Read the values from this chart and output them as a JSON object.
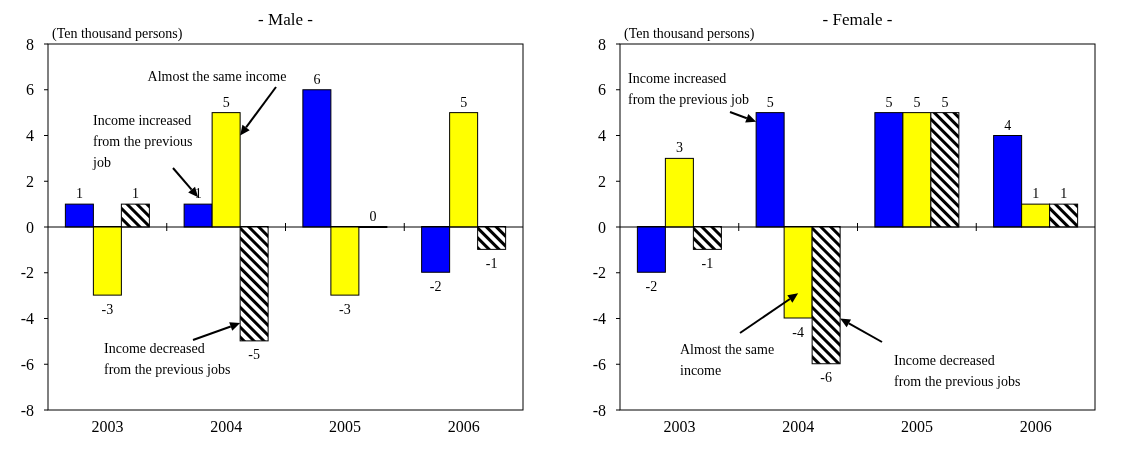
{
  "chart_data": [
    {
      "type": "bar",
      "title": "- Male -",
      "ylabel": "(Ten thousand persons)",
      "categories": [
        "2003",
        "2004",
        "2005",
        "2006"
      ],
      "series": [
        {
          "color": "#0000ff",
          "values": [
            1,
            1,
            6,
            -2
          ]
        },
        {
          "color": "#ffff00",
          "values": [
            -3,
            5,
            -3,
            5
          ]
        },
        {
          "color": "#000000",
          "values": [
            1,
            -5,
            0,
            -1
          ]
        }
      ],
      "ylim": [
        -8,
        8
      ],
      "yticks": [
        -8,
        -6,
        -4,
        -2,
        0,
        2,
        4,
        6,
        8
      ],
      "data_labels": true,
      "annotations": [
        "Almost the same income",
        "Income increased\nfrom the previous\njob",
        "Income decreased\nfrom the previous jobs"
      ]
    },
    {
      "type": "bar",
      "title": "- Female -",
      "ylabel": "(Ten thousand persons)",
      "categories": [
        "2003",
        "2004",
        "2005",
        "2006"
      ],
      "series": [
        {
          "color": "#0000ff",
          "values": [
            -2,
            5,
            5,
            4
          ]
        },
        {
          "color": "#ffff00",
          "values": [
            3,
            -4,
            5,
            1
          ]
        },
        {
          "color": "#000000",
          "values": [
            -1,
            -6,
            5,
            1
          ]
        }
      ],
      "ylim": [
        -8,
        8
      ],
      "yticks": [
        -8,
        -6,
        -4,
        -2,
        0,
        2,
        4,
        6,
        8
      ],
      "data_labels": true,
      "annotations": [
        "Income increased\nfrom the previous job",
        "Almost the same\nincome",
        "Income decreased\nfrom the previous jobs"
      ]
    }
  ]
}
